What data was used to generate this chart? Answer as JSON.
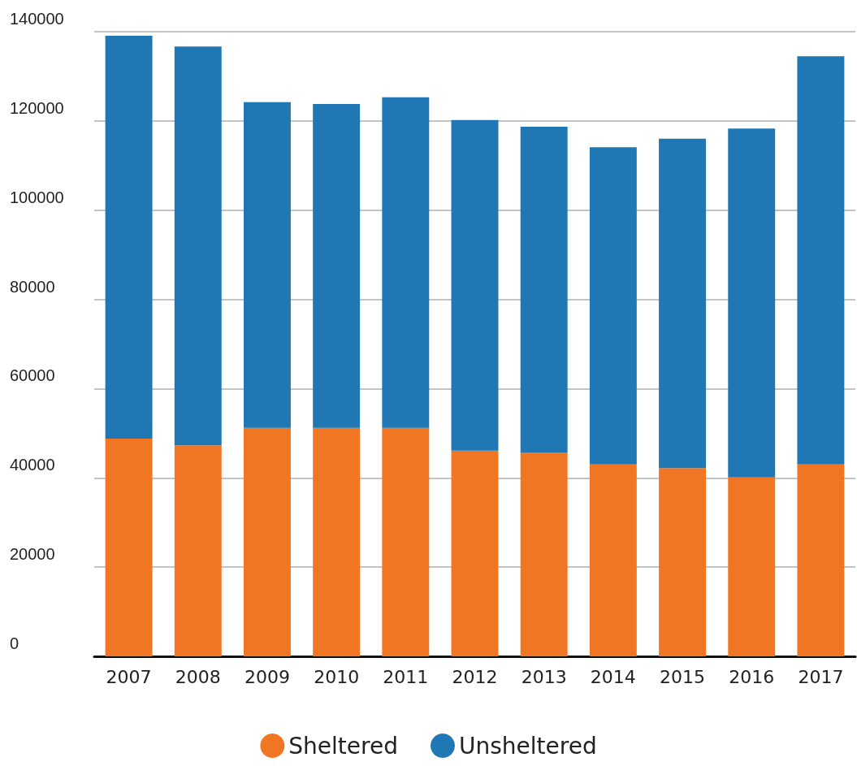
{
  "chart_data": {
    "type": "bar",
    "stacked": true,
    "categories": [
      "2007",
      "2008",
      "2009",
      "2010",
      "2011",
      "2012",
      "2013",
      "2014",
      "2015",
      "2016",
      "2017"
    ],
    "series": [
      {
        "name": "Sheltered",
        "color": "#f07624",
        "values": [
          48800,
          47300,
          51200,
          51200,
          51200,
          46100,
          45700,
          43000,
          42200,
          40100,
          43000
        ]
      },
      {
        "name": "Unsheltered",
        "color": "#1f77b4",
        "values": [
          90300,
          89400,
          73000,
          72600,
          74100,
          74100,
          73000,
          71100,
          73800,
          78200,
          91500
        ]
      }
    ],
    "ylim": [
      0,
      140000
    ],
    "yticks": [
      0,
      20000,
      40000,
      60000,
      80000,
      100000,
      120000,
      140000
    ],
    "grid": "y",
    "legend": "bottom"
  }
}
